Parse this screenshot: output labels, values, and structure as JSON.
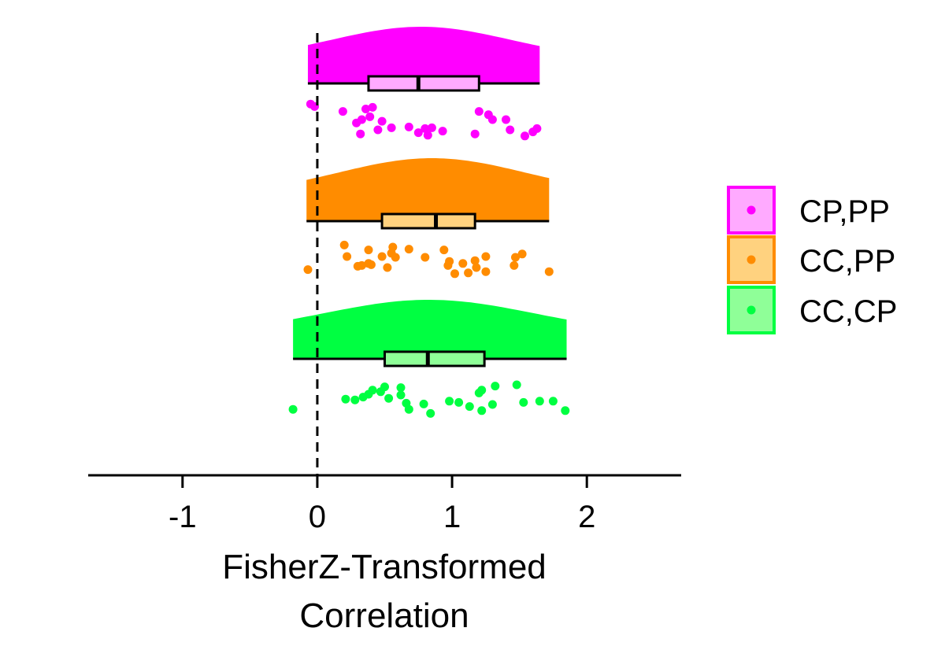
{
  "chart_data": {
    "type": "raincloud",
    "xlabel_lines": [
      "FisherZ-Transformed",
      "Correlation"
    ],
    "ylabel": "",
    "xlim": [
      -1.7,
      2.7
    ],
    "xticks": [
      -1,
      0,
      1,
      2
    ],
    "xtick_labels": [
      "-1",
      "0",
      "1",
      "2"
    ],
    "reference_line_x": 0,
    "grid": false,
    "legend_position": "right",
    "series": [
      {
        "name": "CP,PP",
        "color": "#ff00ff",
        "fill": "#ffaaff",
        "density_range": [
          -0.07,
          1.65
        ],
        "box": {
          "q1": 0.38,
          "median": 0.75,
          "q3": 1.2
        },
        "points": [
          [
            -0.05,
            0.88
          ],
          [
            -0.02,
            0.82
          ],
          [
            0.19,
            0.7
          ],
          [
            0.36,
            0.76
          ],
          [
            0.41,
            0.8
          ],
          [
            0.29,
            0.42
          ],
          [
            0.32,
            0.15
          ],
          [
            0.33,
            0.5
          ],
          [
            0.39,
            0.57
          ],
          [
            0.45,
            0.25
          ],
          [
            0.48,
            0.46
          ],
          [
            0.55,
            0.3
          ],
          [
            0.68,
            0.32
          ],
          [
            0.75,
            0.18
          ],
          [
            0.8,
            0.28
          ],
          [
            0.82,
            0.12
          ],
          [
            0.85,
            0.3
          ],
          [
            0.93,
            0.22
          ],
          [
            1.17,
            0.15
          ],
          [
            1.2,
            0.7
          ],
          [
            1.27,
            0.62
          ],
          [
            1.3,
            0.5
          ],
          [
            1.4,
            0.5
          ],
          [
            1.43,
            0.25
          ],
          [
            1.54,
            0.1
          ],
          [
            1.6,
            0.2
          ],
          [
            1.63,
            0.28
          ]
        ]
      },
      {
        "name": "CC,PP",
        "color": "#ff8c00",
        "fill": "#ffd27f",
        "density_range": [
          -0.08,
          1.72
        ],
        "box": {
          "q1": 0.48,
          "median": 0.88,
          "q3": 1.17
        },
        "points": [
          [
            -0.07,
            0.2
          ],
          [
            0.2,
            0.8
          ],
          [
            0.22,
            0.52
          ],
          [
            0.3,
            0.28
          ],
          [
            0.33,
            0.3
          ],
          [
            0.38,
            0.35
          ],
          [
            0.4,
            0.32
          ],
          [
            0.38,
            0.68
          ],
          [
            0.48,
            0.52
          ],
          [
            0.52,
            0.25
          ],
          [
            0.55,
            0.6
          ],
          [
            0.56,
            0.75
          ],
          [
            0.58,
            0.5
          ],
          [
            0.68,
            0.7
          ],
          [
            0.8,
            0.5
          ],
          [
            0.94,
            0.68
          ],
          [
            0.97,
            0.3
          ],
          [
            0.98,
            0.4
          ],
          [
            1.02,
            0.1
          ],
          [
            1.08,
            0.35
          ],
          [
            1.12,
            0.12
          ],
          [
            1.17,
            0.42
          ],
          [
            1.18,
            0.25
          ],
          [
            1.25,
            0.15
          ],
          [
            1.25,
            0.52
          ],
          [
            1.46,
            0.3
          ],
          [
            1.47,
            0.5
          ],
          [
            1.52,
            0.58
          ],
          [
            1.72,
            0.15
          ]
        ]
      },
      {
        "name": "CC,CP",
        "color": "#00ff41",
        "fill": "#8fff98",
        "density_range": [
          -0.18,
          1.85
        ],
        "box": {
          "q1": 0.5,
          "median": 0.82,
          "q3": 1.24
        },
        "points": [
          [
            -0.18,
            0.15
          ],
          [
            0.21,
            0.4
          ],
          [
            0.28,
            0.38
          ],
          [
            0.34,
            0.45
          ],
          [
            0.38,
            0.52
          ],
          [
            0.41,
            0.62
          ],
          [
            0.47,
            0.58
          ],
          [
            0.5,
            0.7
          ],
          [
            0.53,
            0.42
          ],
          [
            0.62,
            0.5
          ],
          [
            0.62,
            0.68
          ],
          [
            0.66,
            0.3
          ],
          [
            0.68,
            0.15
          ],
          [
            0.79,
            0.28
          ],
          [
            0.84,
            0.05
          ],
          [
            0.98,
            0.35
          ],
          [
            1.05,
            0.32
          ],
          [
            1.13,
            0.22
          ],
          [
            1.2,
            0.55
          ],
          [
            1.22,
            0.62
          ],
          [
            1.22,
            0.12
          ],
          [
            1.3,
            0.27
          ],
          [
            1.32,
            0.72
          ],
          [
            1.48,
            0.75
          ],
          [
            1.53,
            0.32
          ],
          [
            1.65,
            0.35
          ],
          [
            1.75,
            0.35
          ],
          [
            1.84,
            0.12
          ]
        ]
      }
    ]
  }
}
